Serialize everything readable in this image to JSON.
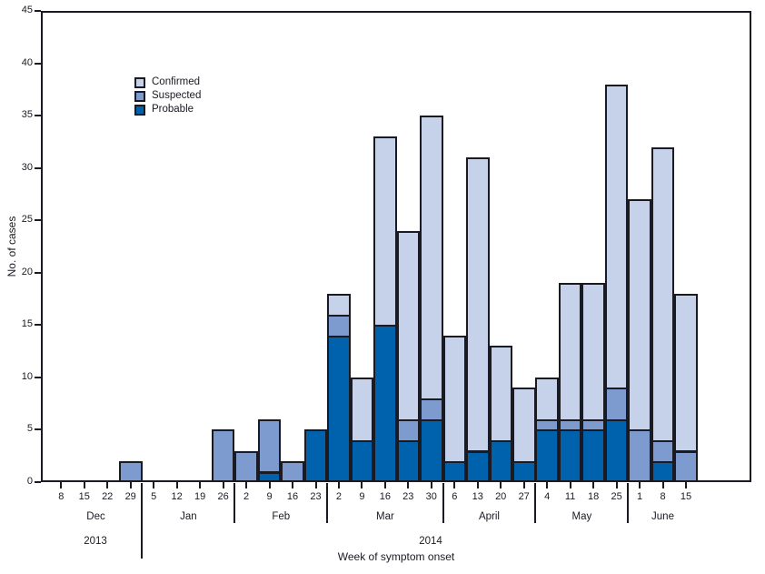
{
  "chart_data": {
    "type": "bar",
    "stacked": true,
    "title": "",
    "xlabel": "Week of symptom onset",
    "ylabel": "No. of cases",
    "ylim": [
      0,
      45
    ],
    "yticks": [
      0,
      5,
      10,
      15,
      20,
      25,
      30,
      35,
      40,
      45
    ],
    "grid": false,
    "legend_position": "upper-left-inside",
    "legend": [
      {
        "label": "Confirmed",
        "color_key": "confirmed"
      },
      {
        "label": "Suspected",
        "color_key": "suspected"
      },
      {
        "label": "Probable",
        "color_key": "probable"
      }
    ],
    "colors": {
      "confirmed": "#c6d2ea",
      "suspected": "#7e9bd0",
      "probable": "#0062ad",
      "outline": "#1a1a23",
      "text": "#1a1a23"
    },
    "years": [
      {
        "label": "2013",
        "months": [
          "Dec"
        ]
      },
      {
        "label": "2014",
        "months": [
          "Jan",
          "Feb",
          "Mar",
          "April",
          "May",
          "June"
        ]
      }
    ],
    "months": [
      {
        "label": "Dec",
        "weeks": [
          "8",
          "15",
          "22",
          "29"
        ]
      },
      {
        "label": "Jan",
        "weeks": [
          "5",
          "12",
          "19",
          "26"
        ]
      },
      {
        "label": "Feb",
        "weeks": [
          "2",
          "9",
          "16",
          "23"
        ]
      },
      {
        "label": "Mar",
        "weeks": [
          "2",
          "9",
          "16",
          "23",
          "30"
        ]
      },
      {
        "label": "April",
        "weeks": [
          "6",
          "13",
          "20",
          "27"
        ]
      },
      {
        "label": "May",
        "weeks": [
          "4",
          "11",
          "18",
          "25"
        ]
      },
      {
        "label": "June",
        "weeks": [
          "1",
          "8",
          "15"
        ]
      }
    ],
    "series": [
      {
        "name": "Probable",
        "color_key": "probable",
        "values": [
          0,
          0,
          0,
          0,
          0,
          0,
          0,
          0,
          0,
          1,
          0,
          5,
          14,
          4,
          15,
          4,
          6,
          2,
          3,
          4,
          2,
          5,
          5,
          5,
          6,
          0,
          2,
          0
        ]
      },
      {
        "name": "Suspected",
        "color_key": "suspected",
        "values": [
          0,
          0,
          0,
          2,
          0,
          0,
          0,
          5,
          3,
          5,
          2,
          0,
          2,
          0,
          0,
          2,
          2,
          0,
          0,
          0,
          0,
          1,
          1,
          1,
          3,
          5,
          2,
          3
        ]
      },
      {
        "name": "Confirmed",
        "color_key": "confirmed",
        "values": [
          0,
          0,
          0,
          0,
          0,
          0,
          0,
          0,
          0,
          0,
          0,
          0,
          2,
          6,
          18,
          18,
          27,
          12,
          28,
          9,
          7,
          4,
          13,
          13,
          29,
          22,
          28,
          15
        ]
      }
    ],
    "totals": [
      0,
      0,
      0,
      2,
      0,
      0,
      0,
      5,
      3,
      6,
      2,
      5,
      18,
      10,
      33,
      24,
      35,
      14,
      31,
      13,
      9,
      10,
      19,
      19,
      38,
      27,
      32,
      18
    ]
  }
}
